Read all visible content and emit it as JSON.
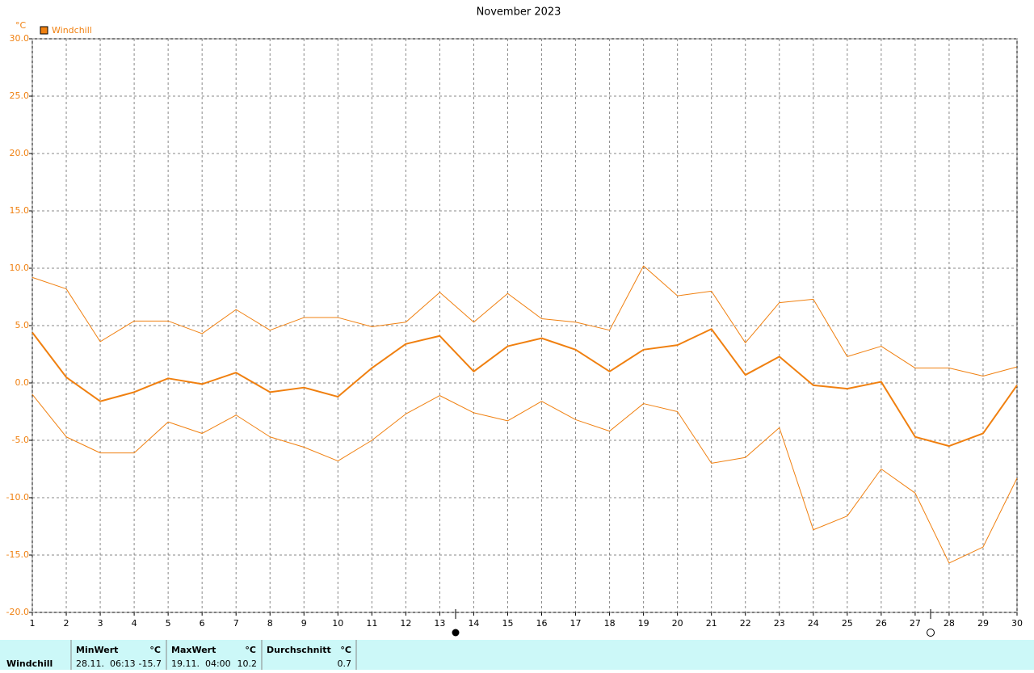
{
  "chart_data": {
    "type": "line",
    "title": "November 2023",
    "y_unit": "°C",
    "x": [
      1,
      2,
      3,
      4,
      5,
      6,
      7,
      8,
      9,
      10,
      11,
      12,
      13,
      14,
      15,
      16,
      17,
      18,
      19,
      20,
      21,
      22,
      23,
      24,
      25,
      26,
      27,
      28,
      29,
      30
    ],
    "xlim": [
      1,
      30
    ],
    "xticks": [
      1,
      2,
      3,
      4,
      5,
      6,
      7,
      8,
      9,
      10,
      11,
      12,
      13,
      14,
      15,
      16,
      17,
      18,
      19,
      20,
      21,
      22,
      23,
      24,
      25,
      26,
      27,
      28,
      29,
      30
    ],
    "ylim": [
      -20,
      30
    ],
    "yticks": [
      {
        "value": -20,
        "label": "-20.0"
      },
      {
        "value": -15,
        "label": "-15.0"
      },
      {
        "value": -10,
        "label": "-10.0"
      },
      {
        "value": -5,
        "label": "-5.0"
      },
      {
        "value": 0,
        "label": "0.0"
      },
      {
        "value": 5,
        "label": "5.0"
      },
      {
        "value": 10,
        "label": "10.0"
      },
      {
        "value": 15,
        "label": "15.0"
      },
      {
        "value": 20,
        "label": "20.0"
      },
      {
        "value": 25,
        "label": "25.0"
      },
      {
        "value": 30,
        "label": "30.0"
      }
    ],
    "grid": true,
    "legend": "top-left",
    "series": [
      {
        "name": "Windchill",
        "color": "#f08010",
        "values": [
          4.4,
          0.5,
          -1.6,
          -0.8,
          0.4,
          -0.1,
          0.9,
          -0.8,
          -0.4,
          -1.2,
          1.3,
          3.4,
          4.1,
          1.0,
          3.2,
          3.9,
          2.9,
          1.0,
          2.9,
          3.3,
          4.7,
          0.7,
          2.3,
          -0.2,
          -0.5,
          0.1,
          -4.7,
          -5.5,
          -4.4,
          -0.2
        ]
      },
      {
        "color": "#f08010",
        "values": [
          9.2,
          8.2,
          3.6,
          5.4,
          5.4,
          4.3,
          6.4,
          4.6,
          5.7,
          5.7,
          4.9,
          5.3,
          7.9,
          5.3,
          7.8,
          5.6,
          5.3,
          4.6,
          10.2,
          7.6,
          8.0,
          3.5,
          7.0,
          7.3,
          2.3,
          3.2,
          1.3,
          1.3,
          0.6,
          1.4
        ]
      },
      {
        "color": "#f08010",
        "values": [
          -1.0,
          -4.7,
          -6.1,
          -6.1,
          -3.4,
          -4.4,
          -2.8,
          -4.7,
          -5.6,
          -6.8,
          -5.0,
          -2.7,
          -1.1,
          -2.6,
          -3.3,
          -1.6,
          -3.2,
          -4.2,
          -1.8,
          -2.5,
          -7.0,
          -6.5,
          -3.9,
          -12.8,
          -11.6,
          -7.5,
          -9.6,
          -15.7,
          -14.3,
          -8.3
        ]
      }
    ]
  },
  "table": {
    "label": "Windchill",
    "min": {
      "header": "MinWert",
      "unit": "°C",
      "time": "28.11.  06:13",
      "value": "-15.7"
    },
    "max": {
      "header": "MaxWert",
      "unit": "°C",
      "time": "19.11.  04:00",
      "value": "10.2"
    },
    "avg": {
      "header": "Durchschnitt",
      "unit": "°C",
      "value": "0.7"
    }
  }
}
